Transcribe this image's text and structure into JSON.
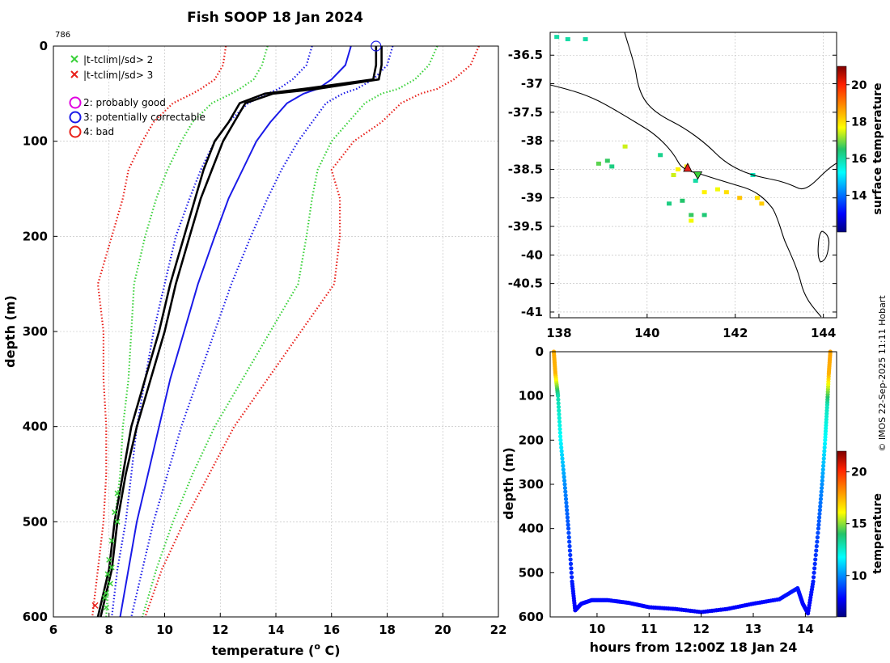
{
  "chart_data": [
    {
      "type": "line",
      "name": "profile",
      "title": "Fish SOOP 18 Jan 2024",
      "profile_id": "786",
      "xlabel": "temperature (",
      "xlabel_sup": "o",
      "xlabel_unit": " C)",
      "ylabel": "depth (m)",
      "xlim": [
        6,
        22
      ],
      "ylim": [
        0,
        600
      ],
      "xticks": [
        6,
        8,
        10,
        12,
        14,
        16,
        18,
        20,
        22
      ],
      "yticks": [
        0,
        100,
        200,
        300,
        400,
        500,
        600
      ],
      "depth": [
        0,
        20,
        35,
        45,
        50,
        60,
        80,
        100,
        130,
        160,
        200,
        250,
        300,
        350,
        400,
        450,
        500,
        550,
        600
      ],
      "series": [
        {
          "name": "clim-3sd",
          "color": "#e8201a",
          "style": "dotted",
          "values": [
            12.2,
            12.1,
            11.8,
            11.3,
            11.0,
            10.3,
            9.6,
            9.2,
            8.7,
            8.5,
            8.1,
            7.6,
            7.8,
            7.8,
            7.9,
            7.9,
            7.8,
            7.6,
            7.4
          ]
        },
        {
          "name": "clim-2sd",
          "color": "#3ad13a",
          "style": "dotted",
          "values": [
            13.7,
            13.5,
            13.2,
            12.7,
            12.4,
            11.7,
            11.0,
            10.6,
            10.1,
            9.7,
            9.3,
            8.9,
            8.8,
            8.7,
            8.5,
            8.4,
            8.2,
            8.0,
            7.9
          ]
        },
        {
          "name": "clim-1sd",
          "color": "#1a1ae8",
          "style": "dotted",
          "values": [
            15.3,
            15.1,
            14.6,
            14.1,
            13.7,
            13.0,
            12.3,
            11.8,
            11.3,
            10.9,
            10.4,
            10.0,
            9.6,
            9.3,
            9.0,
            8.8,
            8.6,
            8.3,
            8.1
          ]
        },
        {
          "name": "clim-mean",
          "color": "#1a1ae8",
          "style": "solid",
          "values": [
            16.7,
            16.5,
            16.0,
            15.5,
            15.0,
            14.4,
            13.8,
            13.3,
            12.8,
            12.3,
            11.8,
            11.2,
            10.7,
            10.2,
            9.8,
            9.4,
            9.0,
            8.7,
            8.4
          ]
        },
        {
          "name": "clim+1sd",
          "color": "#1a1ae8",
          "style": "dotted",
          "values": [
            18.2,
            18.0,
            17.5,
            16.9,
            16.4,
            15.8,
            15.3,
            14.8,
            14.2,
            13.7,
            13.1,
            12.4,
            11.8,
            11.2,
            10.6,
            10.1,
            9.6,
            9.2,
            8.8
          ]
        },
        {
          "name": "clim+2sd",
          "color": "#3ad13a",
          "style": "dotted",
          "values": [
            19.8,
            19.5,
            19.0,
            18.4,
            17.8,
            17.2,
            16.6,
            16.0,
            15.5,
            15.3,
            15.1,
            14.8,
            13.8,
            12.8,
            11.8,
            11.0,
            10.3,
            9.7,
            9.2
          ]
        },
        {
          "name": "clim+3sd",
          "color": "#e8201a",
          "style": "dotted",
          "values": [
            21.3,
            21.0,
            20.4,
            19.8,
            19.2,
            18.5,
            17.8,
            16.8,
            16.0,
            16.3,
            16.3,
            16.1,
            14.9,
            13.7,
            12.5,
            11.6,
            10.7,
            9.9,
            9.3
          ]
        },
        {
          "name": "profile-down",
          "color": "#000000",
          "style": "solid",
          "values": [
            17.6,
            17.6,
            17.5,
            15.0,
            13.6,
            12.7,
            12.3,
            11.8,
            11.4,
            11.1,
            10.7,
            10.2,
            9.8,
            9.3,
            8.8,
            8.5,
            8.2,
            8.0,
            7.6
          ]
        },
        {
          "name": "profile-up",
          "color": "#000000",
          "style": "solid",
          "values": [
            17.8,
            17.8,
            17.7,
            15.5,
            13.9,
            12.9,
            12.5,
            12.1,
            11.7,
            11.3,
            10.9,
            10.4,
            10.0,
            9.5,
            9.0,
            8.6,
            8.3,
            8.1,
            7.7
          ]
        }
      ],
      "flag_2sd_points": [
        [
          8.3,
          470
        ],
        [
          8.2,
          490
        ],
        [
          8.3,
          500
        ],
        [
          8.1,
          520
        ],
        [
          8.0,
          540
        ],
        [
          8.1,
          548
        ],
        [
          7.95,
          555
        ],
        [
          8.05,
          565
        ],
        [
          7.9,
          575
        ],
        [
          7.85,
          580
        ],
        [
          7.9,
          590
        ]
      ],
      "flag_3sd_points": [
        [
          7.5,
          588
        ]
      ],
      "qc_marker": {
        "temperature": 17.6,
        "depth": 0
      },
      "legend": {
        "flag_2sd": "|t-tclim|/sd> 2",
        "flag_3sd": "|t-tclim|/sd> 3",
        "qc2": "2: probably good",
        "qc3": "3: potentially correctable",
        "qc4": "4: bad"
      }
    },
    {
      "type": "heatmap",
      "name": "map",
      "xlim": [
        137.8,
        144.3
      ],
      "ylim": [
        -41.1,
        -36.1
      ],
      "xticks": [
        138,
        140,
        142,
        144
      ],
      "xtick_labels": [
        "138",
        "140",
        "142",
        "144"
      ],
      "yticks": [
        -36.5,
        -37,
        -37.5,
        -38,
        -38.5,
        -39,
        -39.5,
        -40,
        -40.5,
        -41
      ],
      "ytick_labels": [
        "-36.5",
        "-37",
        "-37.5",
        "-38",
        "-38.5",
        "-39",
        "-39.5",
        "-40",
        "-40.5",
        "-41"
      ],
      "colorbar_label": "surface temperature",
      "colorbar_range": [
        12,
        21
      ],
      "colorbar_ticks": [
        "14",
        "16",
        "18",
        "20"
      ],
      "sst_pixels": [
        [
          137.95,
          -36.18,
          16
        ],
        [
          138.2,
          -36.22,
          16
        ],
        [
          138.6,
          -36.22,
          16
        ],
        [
          139.5,
          -38.1,
          17.4
        ],
        [
          139.1,
          -38.35,
          16.6
        ],
        [
          139.2,
          -38.45,
          16.3
        ],
        [
          138.9,
          -38.4,
          16.8
        ],
        [
          140.3,
          -38.25,
          16.2
        ],
        [
          140.6,
          -38.6,
          17.4
        ],
        [
          140.7,
          -38.5,
          17.8
        ],
        [
          140.9,
          -38.45,
          18
        ],
        [
          141.1,
          -38.7,
          16
        ],
        [
          141.3,
          -38.9,
          17.8
        ],
        [
          141.6,
          -38.85,
          17.6
        ],
        [
          141.8,
          -38.9,
          18
        ],
        [
          142.1,
          -39.0,
          18.3
        ],
        [
          142.4,
          -38.6,
          15.8
        ],
        [
          142.5,
          -39.0,
          18
        ],
        [
          140.5,
          -39.1,
          16.3
        ],
        [
          140.8,
          -39.05,
          16.5
        ],
        [
          141.0,
          -39.3,
          16.6
        ],
        [
          141.3,
          -39.3,
          16.4
        ],
        [
          141.0,
          -39.4,
          17.6
        ],
        [
          142.6,
          -39.1,
          18.2
        ]
      ],
      "start_marker": [
        140.92,
        -38.48
      ],
      "end_marker": [
        141.15,
        -38.6
      ]
    },
    {
      "type": "scatter",
      "name": "time-depth",
      "xlabel": "hours from 12:00Z 18 Jan 24",
      "ylabel": "depth (m)",
      "xlim": [
        9.1,
        14.6
      ],
      "ylim": [
        0,
        600
      ],
      "xticks": [
        10,
        11,
        12,
        13,
        14
      ],
      "yticks": [
        0,
        100,
        200,
        300,
        400,
        500,
        600
      ],
      "colorbar_label": "temperature",
      "colorbar_range": [
        6,
        22
      ],
      "colorbar_ticks": [
        "10",
        "15",
        "20"
      ],
      "track": [
        [
          9.17,
          0,
          17.6
        ],
        [
          9.2,
          50,
          17.5
        ],
        [
          9.25,
          100,
          13
        ],
        [
          9.3,
          200,
          11.7
        ],
        [
          9.38,
          300,
          10
        ],
        [
          9.45,
          400,
          9
        ],
        [
          9.52,
          520,
          8.2
        ],
        [
          9.58,
          585,
          7.6
        ],
        [
          9.7,
          570,
          7.8
        ],
        [
          9.9,
          562,
          7.9
        ],
        [
          10.2,
          562,
          7.9
        ],
        [
          10.6,
          568,
          7.8
        ],
        [
          11.0,
          578,
          7.7
        ],
        [
          11.5,
          582,
          7.7
        ],
        [
          12.0,
          589,
          7.6
        ],
        [
          12.5,
          582,
          7.7
        ],
        [
          13.0,
          570,
          7.8
        ],
        [
          13.5,
          560,
          7.9
        ],
        [
          13.85,
          535,
          8.1
        ],
        [
          13.95,
          570,
          7.8
        ],
        [
          14.05,
          592,
          7.6
        ],
        [
          14.15,
          520,
          8.2
        ],
        [
          14.25,
          400,
          9
        ],
        [
          14.32,
          300,
          10
        ],
        [
          14.38,
          200,
          11.7
        ],
        [
          14.42,
          120,
          12.8
        ],
        [
          14.45,
          50,
          17.5
        ],
        [
          14.48,
          0,
          17.8
        ]
      ]
    }
  ],
  "watermark": "© IMOS 22-Sep-2025 11:11 Hobart"
}
